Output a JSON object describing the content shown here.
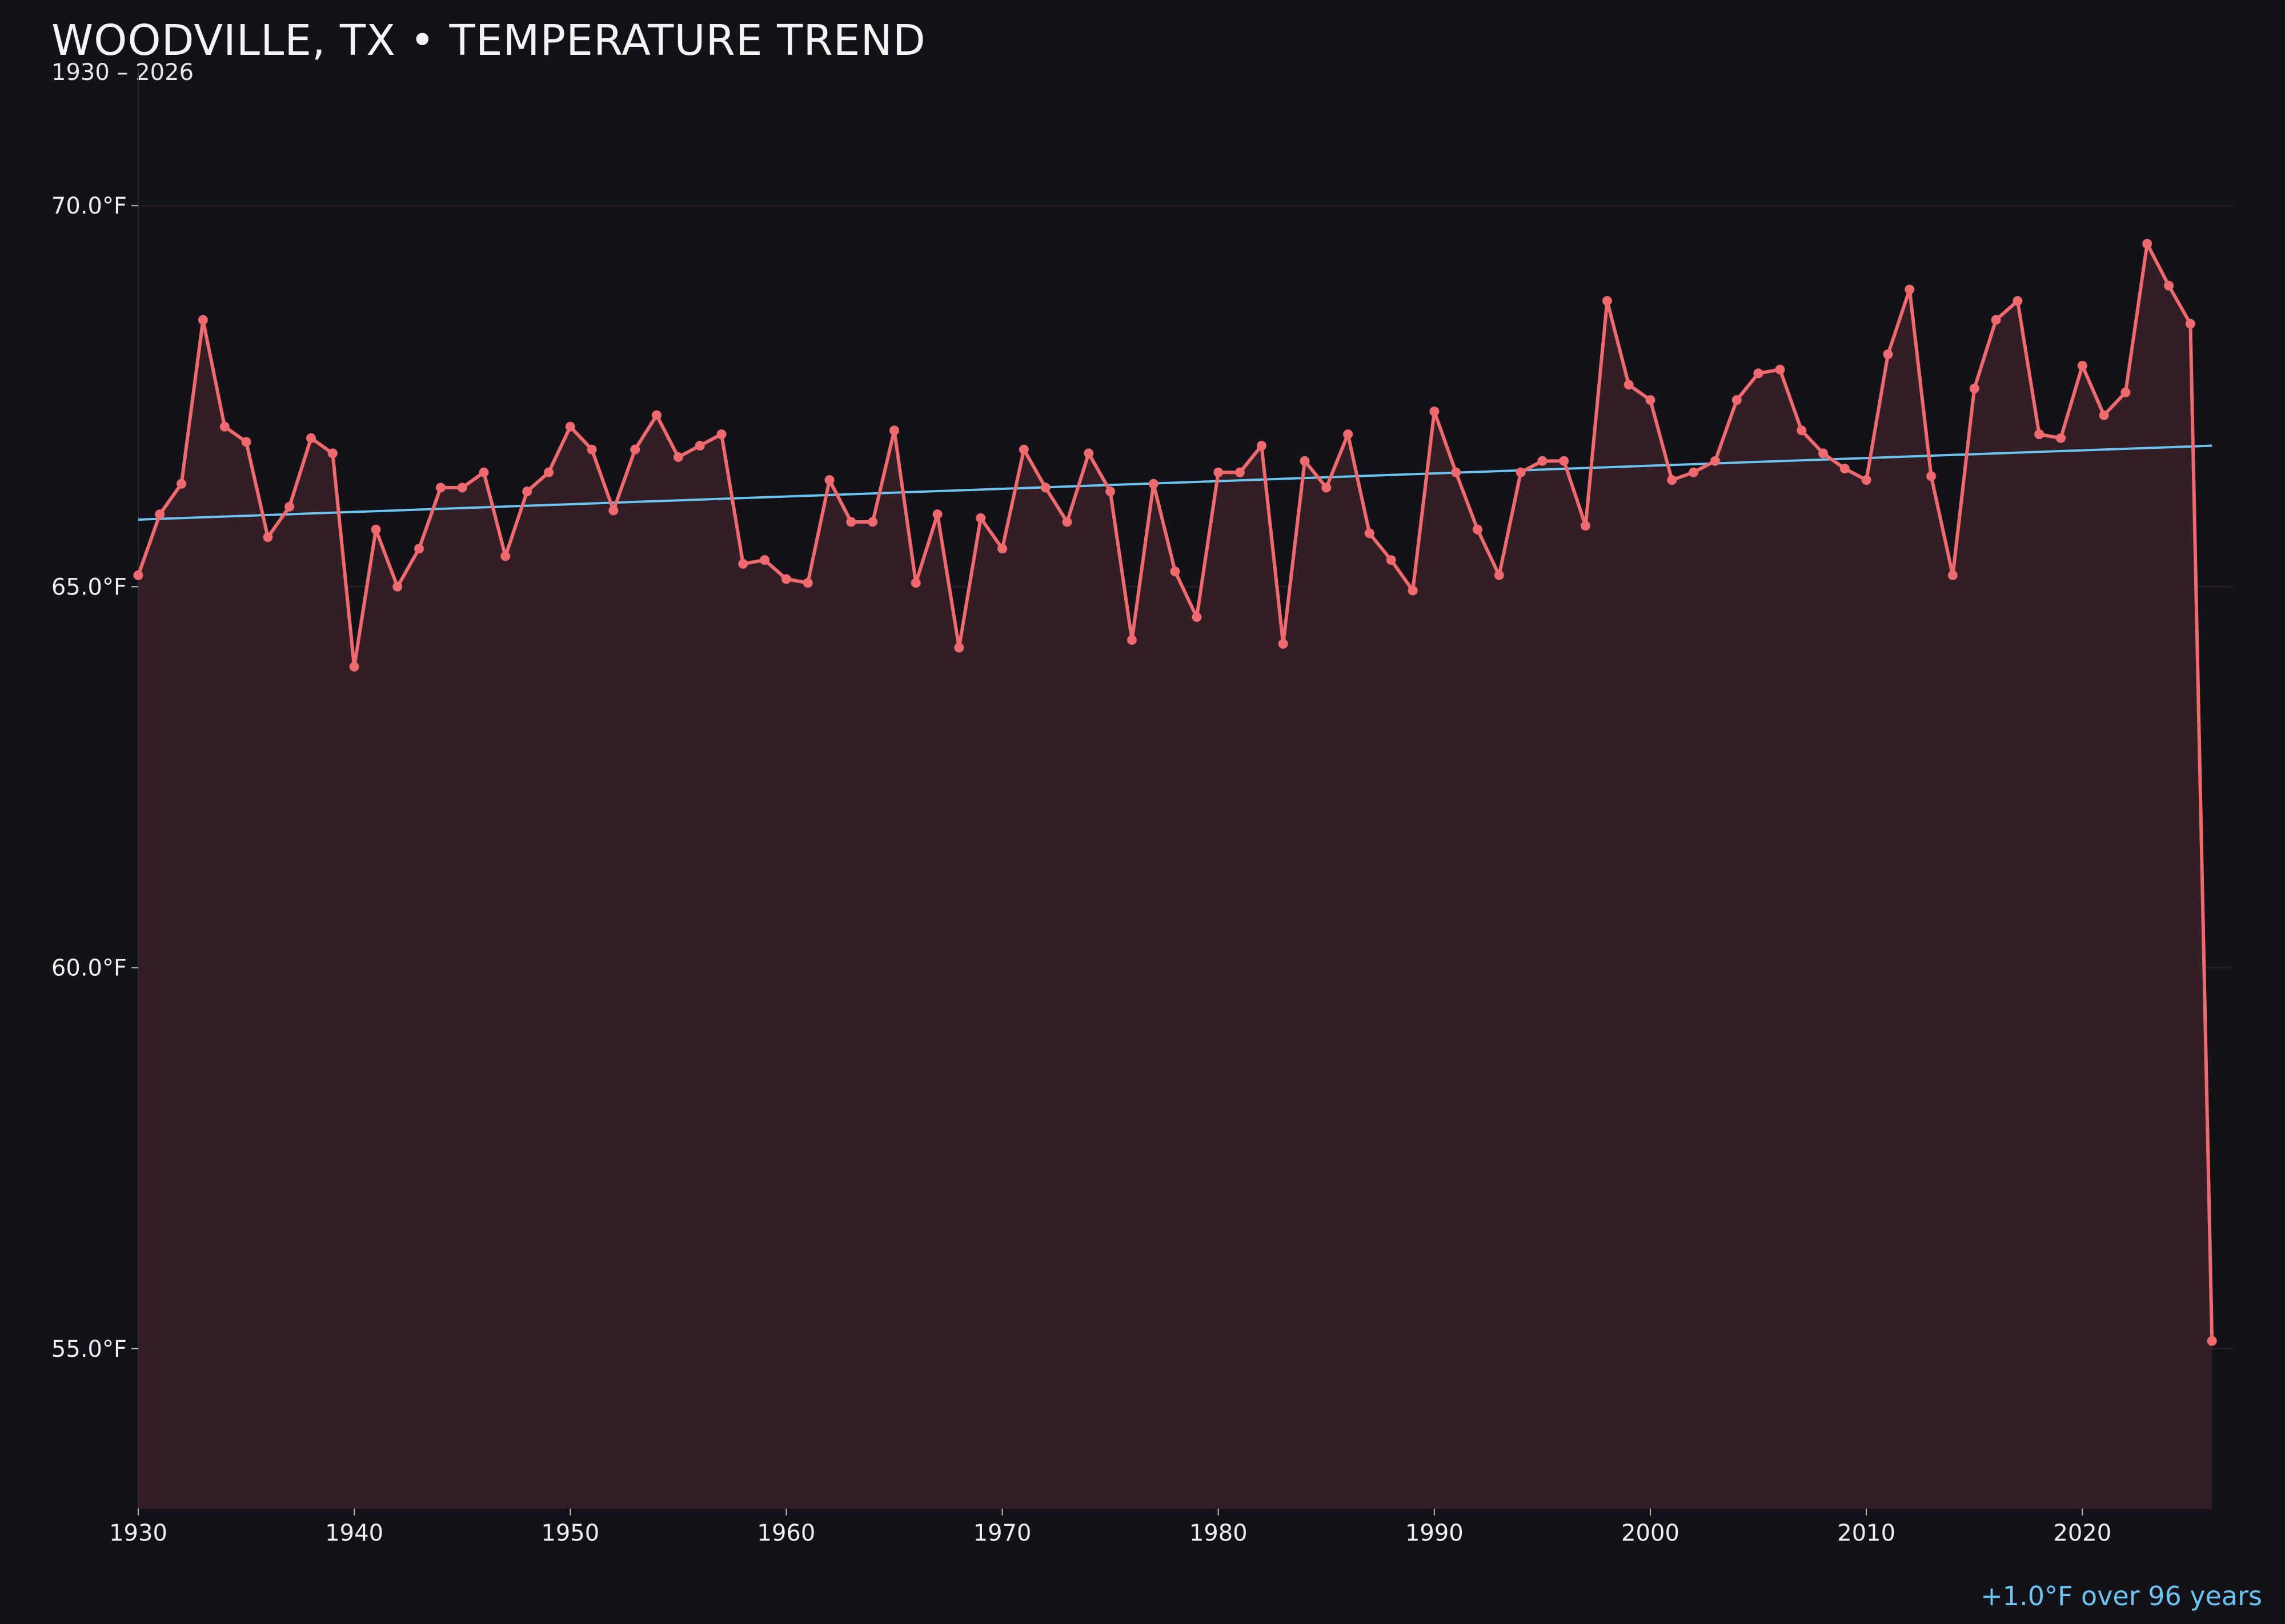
{
  "chart_data": {
    "type": "line",
    "title": "WOODVILLE, TX • TEMPERATURE TREND",
    "subtitle": "1930 – 2026",
    "annotation": "+1.0°F over 96 years",
    "xlim": [
      1930,
      2027
    ],
    "ylim": [
      52.9,
      71.8
    ],
    "x_ticks": [
      1930,
      1940,
      1950,
      1960,
      1970,
      1980,
      1990,
      2000,
      2010,
      2020
    ],
    "y_ticks": [
      {
        "value": 55.0,
        "label": "55.0°F"
      },
      {
        "value": 60.0,
        "label": "60.0°F"
      },
      {
        "value": 65.0,
        "label": "65.0°F"
      },
      {
        "value": 70.0,
        "label": "70.0°F"
      }
    ],
    "grid": "horizontal",
    "colors": {
      "series": "#ef6a6f",
      "fill": "#331e25",
      "trend": "#6cc4f0",
      "background": "#131218",
      "grid": "#2a2228"
    },
    "series": [
      {
        "x": [
          1930,
          1931,
          1932,
          1933,
          1934,
          1935,
          1936,
          1937,
          1938,
          1939,
          1940,
          1941,
          1942,
          1943,
          1944,
          1945,
          1946,
          1947,
          1948,
          1949,
          1950,
          1951,
          1952,
          1953,
          1954,
          1955,
          1956,
          1957,
          1958,
          1959,
          1960,
          1961,
          1962,
          1963,
          1964,
          1965,
          1966,
          1967,
          1968,
          1969,
          1970,
          1971,
          1972,
          1973,
          1974,
          1975,
          1976,
          1977,
          1978,
          1979,
          1980,
          1981,
          1982,
          1983,
          1984,
          1985,
          1986,
          1987,
          1988,
          1989,
          1990,
          1991,
          1992,
          1993,
          1994,
          1995,
          1996,
          1997,
          1998,
          1999,
          2000,
          2001,
          2002,
          2003,
          2004,
          2005,
          2006,
          2007,
          2008,
          2009,
          2010,
          2011,
          2012,
          2013,
          2014,
          2015,
          2016,
          2017,
          2018,
          2019,
          2020,
          2021,
          2022,
          2023,
          2024,
          2025,
          2026
        ],
        "values": [
          65.15,
          65.95,
          66.35,
          68.5,
          67.1,
          66.9,
          65.65,
          66.05,
          66.95,
          66.75,
          63.95,
          65.75,
          65.0,
          65.5,
          66.3,
          66.3,
          66.5,
          65.4,
          66.25,
          66.5,
          67.1,
          66.8,
          66.0,
          66.8,
          67.25,
          66.7,
          66.85,
          67.0,
          65.3,
          65.35,
          65.1,
          65.05,
          66.4,
          65.85,
          65.85,
          67.05,
          65.05,
          65.95,
          64.2,
          65.9,
          65.5,
          66.8,
          66.3,
          65.85,
          66.75,
          66.25,
          64.3,
          66.35,
          65.2,
          64.6,
          66.5,
          66.5,
          66.85,
          64.25,
          66.65,
          66.3,
          67.0,
          65.7,
          65.35,
          64.95,
          67.3,
          66.5,
          65.75,
          65.15,
          66.5,
          66.65,
          66.65,
          65.8,
          68.75,
          67.65,
          67.45,
          66.4,
          66.5,
          66.65,
          67.45,
          67.8,
          67.85,
          67.05,
          66.75,
          66.55,
          66.4,
          68.05,
          68.9,
          66.45,
          65.15,
          67.6,
          68.5,
          68.75,
          67.0,
          66.95,
          67.9,
          67.25,
          67.55,
          69.5,
          68.95,
          68.45,
          55.1
        ]
      }
    ],
    "trend": {
      "x": [
        1930,
        2026
      ],
      "y": [
        65.88,
        66.85
      ]
    }
  }
}
